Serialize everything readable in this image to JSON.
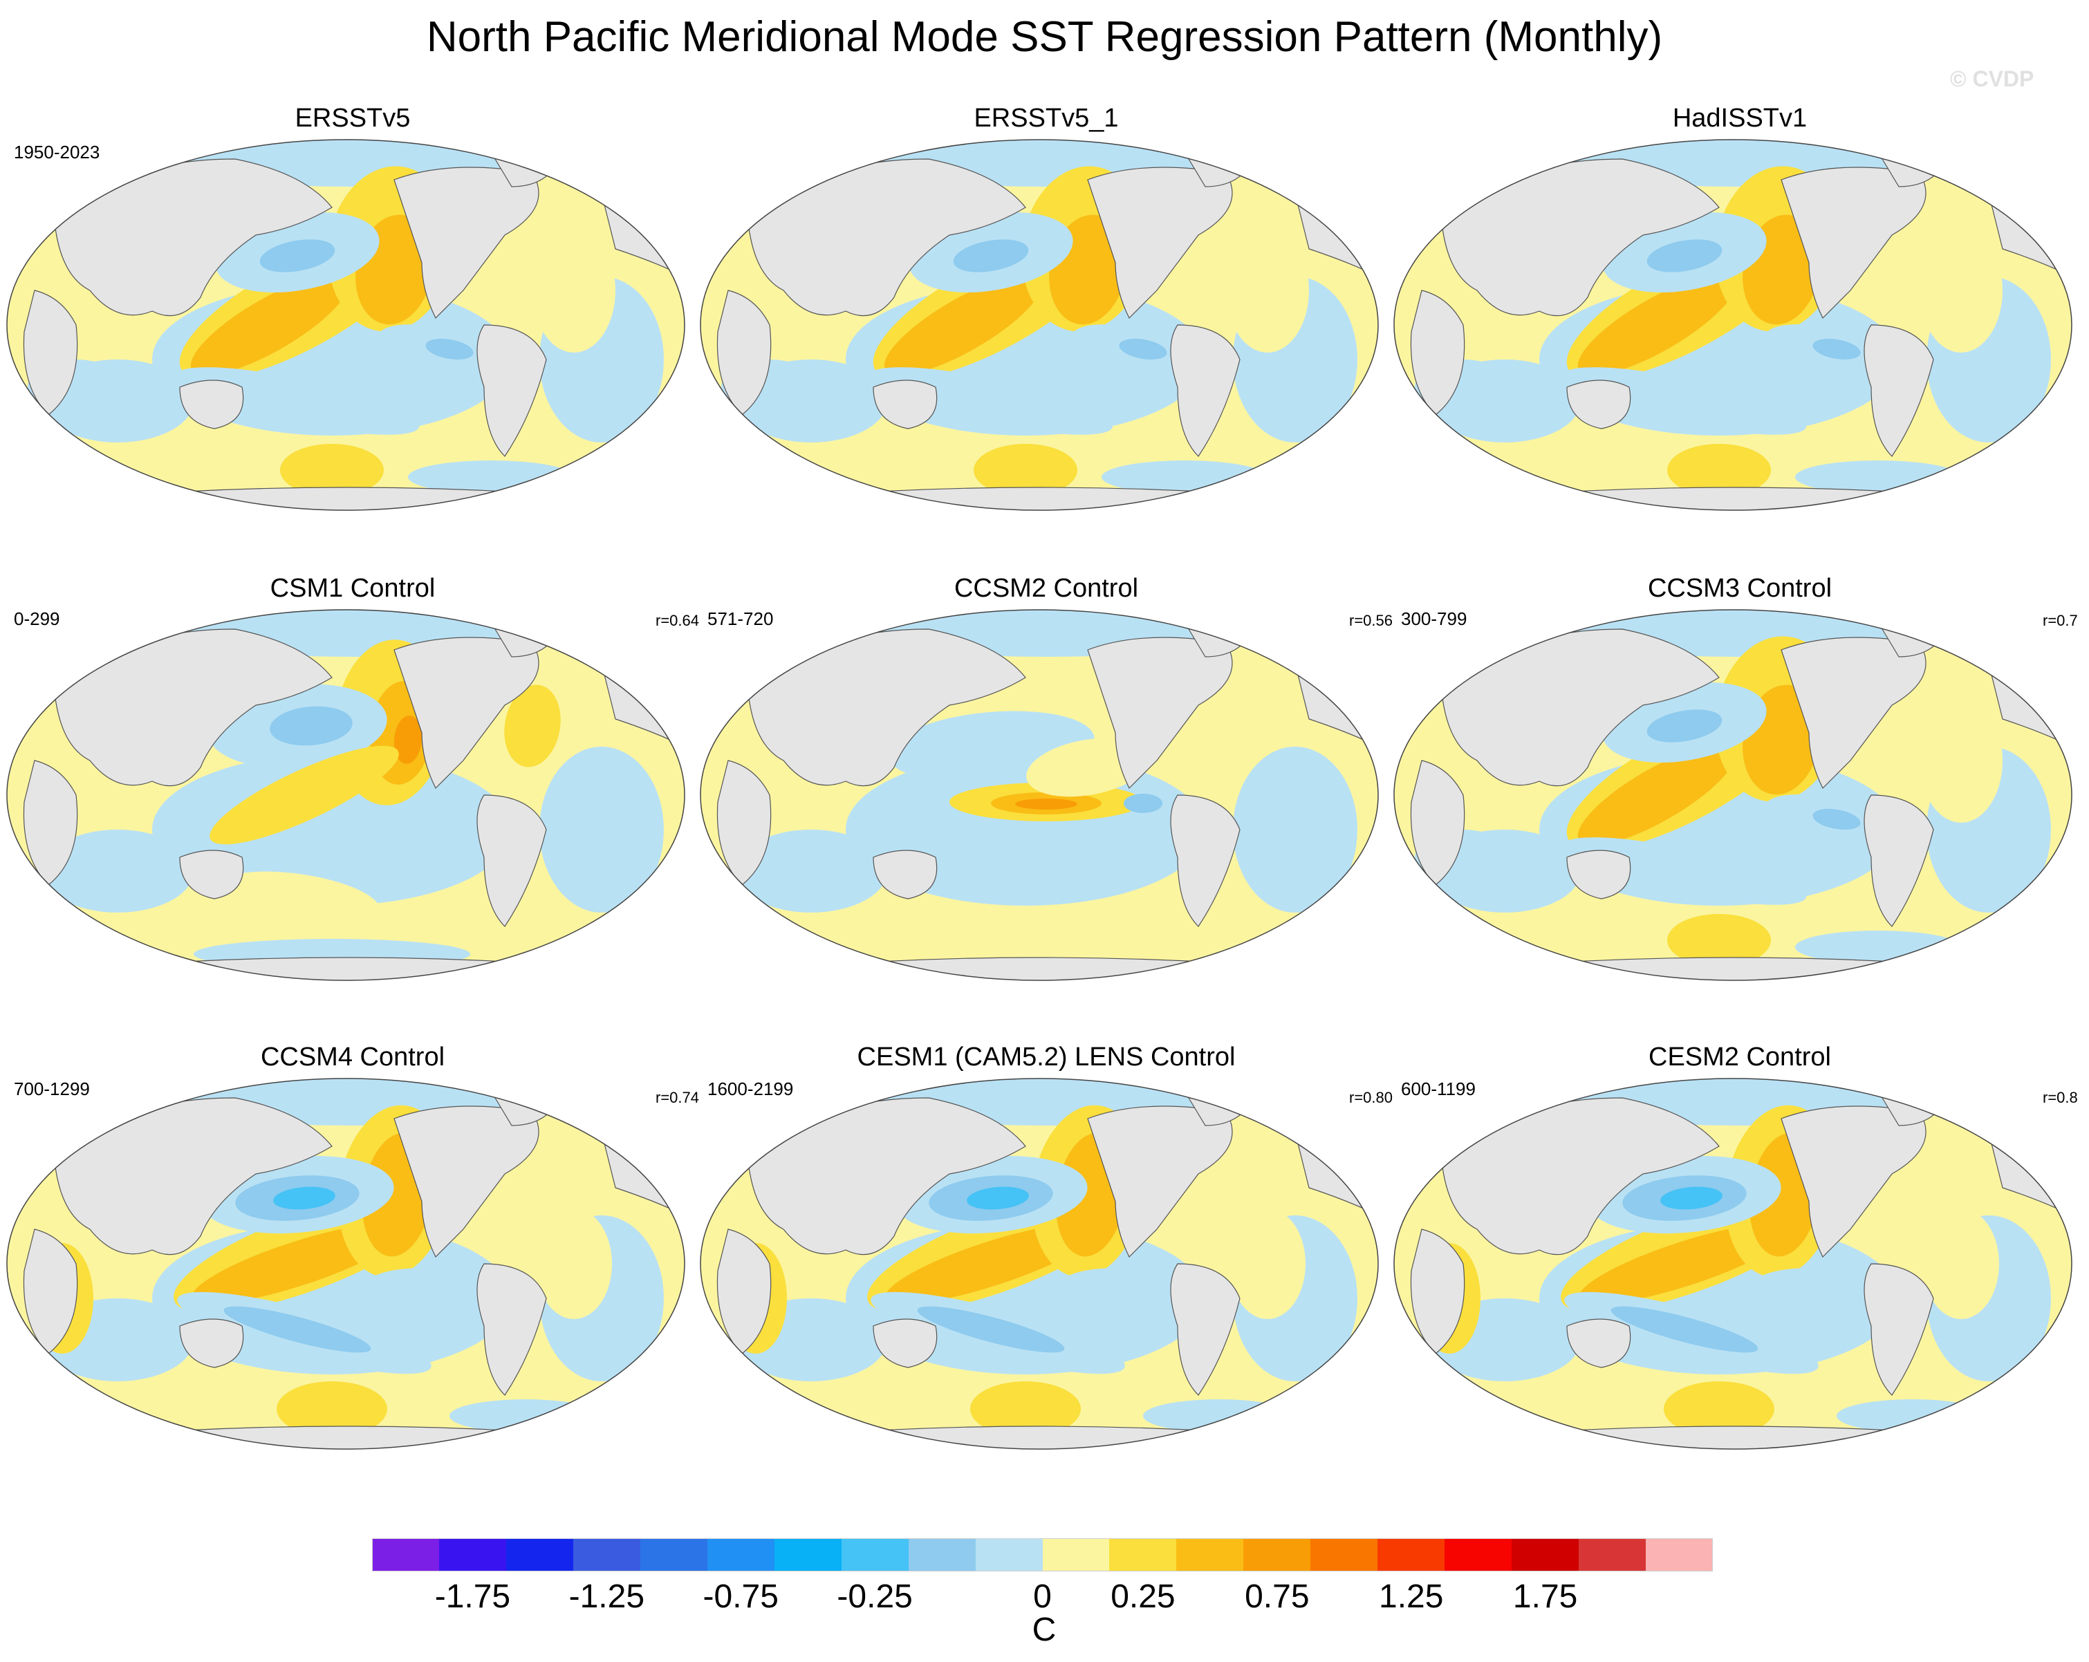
{
  "figure": {
    "title": "North Pacific Meridional Mode SST Regression Pattern (Monthly)",
    "watermark": "© CVDP"
  },
  "chart_data": {
    "type": "contour_map_grid",
    "field": "SST regression onto North Pacific Meridional Mode index",
    "units": "C",
    "projection": "Robinson (Pacific-centered)",
    "pattern_legend": {
      "positive": "warm anomalies (yellow to orange)",
      "negative": "cool anomalies (light to medium blue)"
    },
    "colorbar": {
      "levels": [
        -2.0,
        -1.75,
        -1.5,
        -1.25,
        -1.0,
        -0.75,
        -0.5,
        -0.25,
        -0.1,
        0,
        0.1,
        0.25,
        0.5,
        0.75,
        1.0,
        1.25,
        1.5,
        1.75,
        2.0
      ],
      "colors": [
        "#7c1fe6",
        "#3a14f0",
        "#1426ee",
        "#3a5be0",
        "#2b74e8",
        "#2190f5",
        "#08b0f5",
        "#45c2f6",
        "#8ecbee",
        "#b9e1f4",
        "#fbf5a0",
        "#fadf3d",
        "#f9bd16",
        "#f99d06",
        "#f97600",
        "#f83a00",
        "#f70300",
        "#d00000",
        "#d83636",
        "#fbb3b3"
      ],
      "tick_labels": [
        "-1.75",
        "-1.25",
        "-0.75",
        "-0.25",
        "0",
        "0.25",
        "0.75",
        "1.25",
        "1.75"
      ],
      "unit_label": "C"
    },
    "panels": [
      {
        "name": "ERSSTv5",
        "years": "1950-2023",
        "corr": "",
        "pattern": "npmm"
      },
      {
        "name": "ERSSTv5_1",
        "years": "",
        "corr": "",
        "pattern": "npmm"
      },
      {
        "name": "HadISSTv1",
        "years": "",
        "corr": "",
        "pattern": "npmm"
      },
      {
        "name": "CSM1 Control",
        "years": "0-299",
        "corr": "r=0.64",
        "pattern": "npmm-north"
      },
      {
        "name": "CCSM2 Control",
        "years": "571-720",
        "corr": "r=0.56",
        "pattern": "equatorial"
      },
      {
        "name": "CCSM3 Control",
        "years": "300-799",
        "corr": "r=0.7",
        "pattern": "npmm"
      },
      {
        "name": "CCSM4 Control",
        "years": "700-1299",
        "corr": "r=0.74",
        "pattern": "npmm-strong"
      },
      {
        "name": "CESM1 (CAM5.2) LENS Control",
        "years": "1600-2199",
        "corr": "r=0.80",
        "pattern": "npmm-strong"
      },
      {
        "name": "CESM2 Control",
        "years": "600-1199",
        "corr": "r=0.8",
        "pattern": "npmm-strong"
      }
    ]
  }
}
